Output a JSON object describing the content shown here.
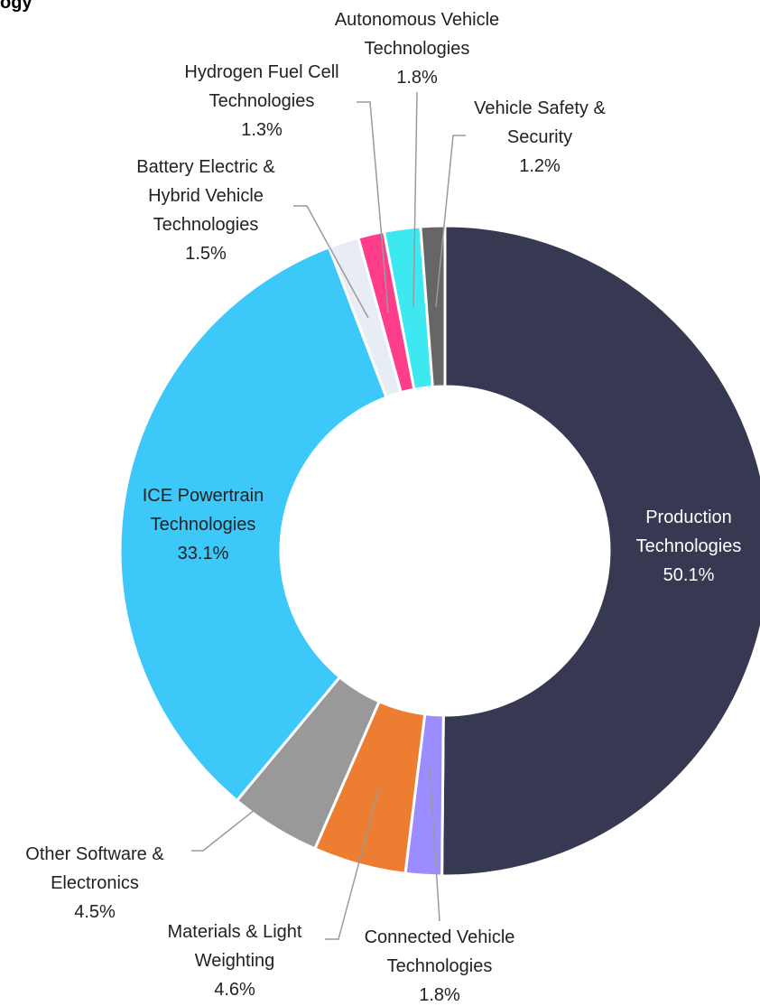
{
  "chart_data": {
    "type": "pie",
    "title": "ogy",
    "donut": true,
    "categories": [
      "Production Technologies",
      "Connected Vehicle Technologies",
      "Materials & Light Weighting",
      "Other Software & Electronics",
      "ICE Powertrain Technologies",
      "Battery Electric & Hybrid Vehicle Technologies",
      "Hydrogen Fuel Cell Technologies",
      "Autonomous Vehicle Technologies",
      "Vehicle Safety & Security"
    ],
    "values": [
      50.1,
      1.8,
      4.6,
      4.5,
      33.1,
      1.5,
      1.3,
      1.8,
      1.2
    ],
    "value_labels": [
      "50.1%",
      "1.8%",
      "4.6%",
      "4.5%",
      "33.1%",
      "1.5%",
      "1.3%",
      "1.8%",
      "1.2%"
    ],
    "colors": [
      "#373852",
      "#9b8cff",
      "#ed7d31",
      "#999999",
      "#3cc8f8",
      "#e8edf5",
      "#ff3d8b",
      "#3de8f0",
      "#666666"
    ]
  }
}
